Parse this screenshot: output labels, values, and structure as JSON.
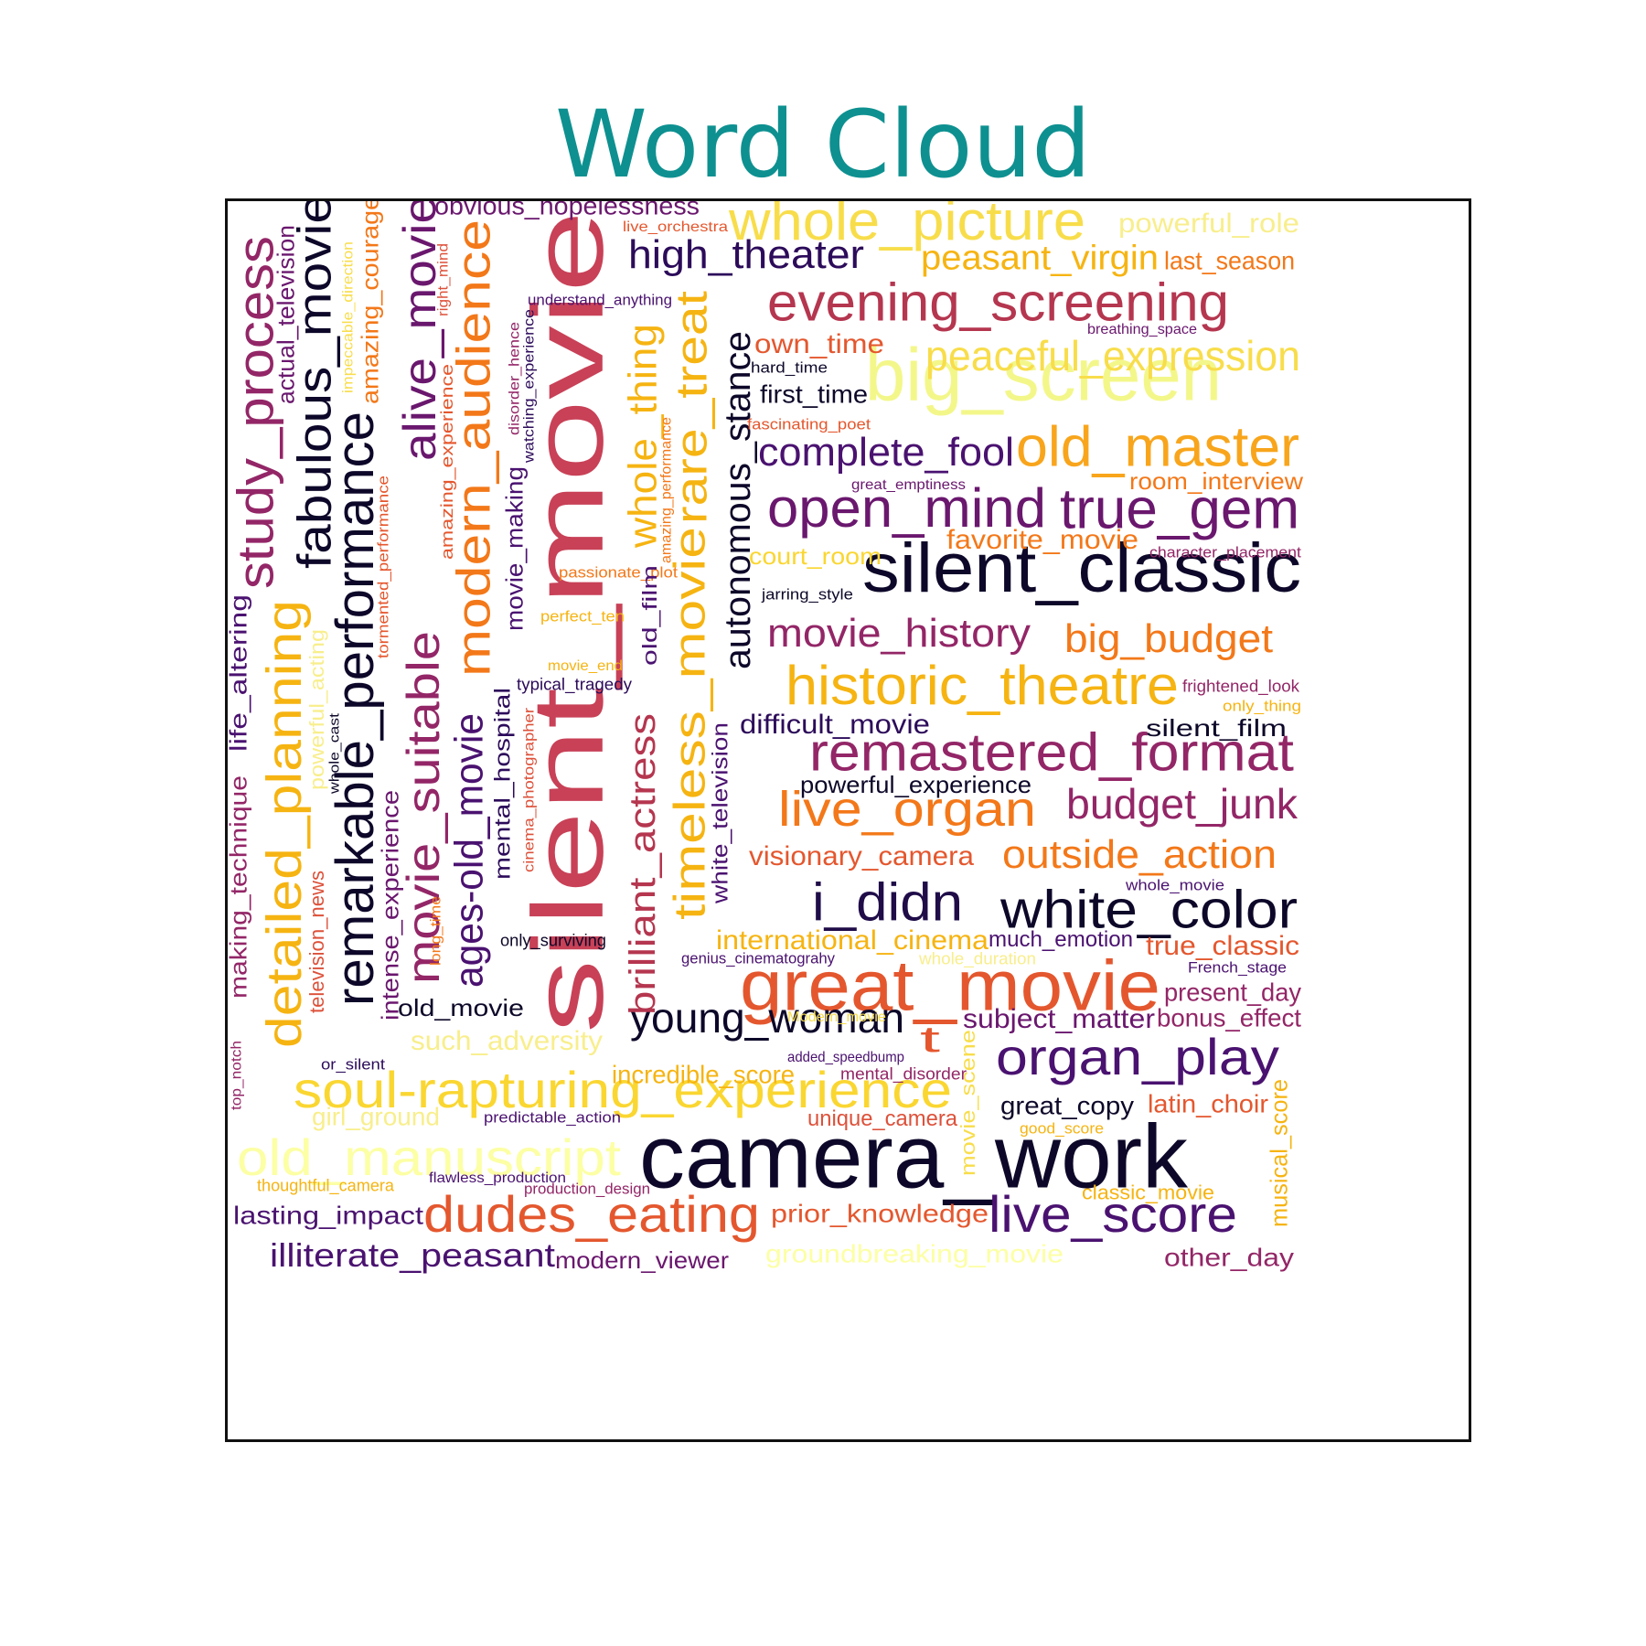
{
  "title": "Word Cloud",
  "colors": {
    "title": "#0e9090",
    "border": "#111111",
    "background": "#ffffff",
    "palette": [
      "#0d0829",
      "#3b0f6f",
      "#6a176e",
      "#932667",
      "#bc3754",
      "#dd513a",
      "#f37819",
      "#fca50a",
      "#f6d746",
      "#fcffa4"
    ]
  },
  "words": [
    {
      "text": "silent_movie",
      "color": "#c84157"
    },
    {
      "text": "camera_work",
      "color": "#0d0829"
    },
    {
      "text": "great_movie",
      "color": "#e4572e"
    },
    {
      "text": "big_screen",
      "color": "#f3f78a"
    },
    {
      "text": "silent_classic",
      "color": "#0d0829"
    },
    {
      "text": "whole_picture",
      "color": "#f8dd4b"
    },
    {
      "text": "evening_screening",
      "color": "#b5364f"
    },
    {
      "text": "peaceful_expression",
      "color": "#f8dd4b"
    },
    {
      "text": "old_master",
      "color": "#f8a51c"
    },
    {
      "text": "true_gem",
      "color": "#6a176e"
    },
    {
      "text": "open_mind",
      "color": "#6a176e"
    },
    {
      "text": "complete_fool",
      "color": "#4a1270"
    },
    {
      "text": "historic_theatre",
      "color": "#f6b412"
    },
    {
      "text": "remastered_format",
      "color": "#932667"
    },
    {
      "text": "live_organ",
      "color": "#f37819"
    },
    {
      "text": "budget_junk",
      "color": "#932667"
    },
    {
      "text": "outside_action",
      "color": "#f37819"
    },
    {
      "text": "white_color",
      "color": "#0d0829"
    },
    {
      "text": "i_didn",
      "color": "#1f0c48"
    },
    {
      "text": "organ_play",
      "color": "#4a1270"
    },
    {
      "text": "soul-rapturing_experience",
      "color": "#fad631"
    },
    {
      "text": "old_manuscript",
      "color": "#fcffa4"
    },
    {
      "text": "dudes_eating",
      "color": "#e4572e"
    },
    {
      "text": "live_score",
      "color": "#4a1270"
    },
    {
      "text": "young_woman",
      "color": "#0d0829"
    },
    {
      "text": "high_theater",
      "color": "#2c0b5a"
    },
    {
      "text": "movie_history",
      "color": "#932667"
    },
    {
      "text": "big_budget",
      "color": "#f37819"
    },
    {
      "text": "study_process",
      "color": "#932667"
    },
    {
      "text": "fabulous_movie",
      "color": "#0d0829"
    },
    {
      "text": "remarkable_performance",
      "color": "#0d0829"
    },
    {
      "text": "detailed_planning",
      "color": "#f6b412"
    },
    {
      "text": "movie_suitable",
      "color": "#932667"
    },
    {
      "text": "alive_movie",
      "color": "#6a176e"
    },
    {
      "text": "modern_audience",
      "color": "#f37819"
    },
    {
      "text": "rare_treat",
      "color": "#f6b412"
    },
    {
      "text": "whole_thing",
      "color": "#f6b412"
    },
    {
      "text": "timeless_movie",
      "color": "#f6b412"
    },
    {
      "text": "autonomous_stance",
      "color": "#0d0829"
    },
    {
      "text": "brilliant_actress",
      "color": "#b5364f"
    },
    {
      "text": "ages-old_movie",
      "color": "#4a1270"
    },
    {
      "text": "peasant_virgin",
      "color": "#f6b412"
    },
    {
      "text": "powerful_role",
      "color": "#f8ee8c"
    },
    {
      "text": "last_season",
      "color": "#f37819"
    },
    {
      "text": "obvious_hopelessness",
      "color": "#6a176e"
    },
    {
      "text": "live_orchestra",
      "color": "#e4572e"
    },
    {
      "text": "understand_anything",
      "color": "#4a1270"
    },
    {
      "text": "breathing_space",
      "color": "#6a176e"
    },
    {
      "text": "own_time",
      "color": "#e4572e"
    },
    {
      "text": "hard_time",
      "color": "#0d0829"
    },
    {
      "text": "first_time",
      "color": "#0d0829"
    },
    {
      "text": "fascinating_poet",
      "color": "#e4572e"
    },
    {
      "text": "great_emptiness",
      "color": "#6a176e"
    },
    {
      "text": "room_interview",
      "color": "#f37819"
    },
    {
      "text": "favorite_movie",
      "color": "#f37819"
    },
    {
      "text": "character_placement",
      "color": "#932667"
    },
    {
      "text": "court_room",
      "color": "#fad631"
    },
    {
      "text": "passionate_plot",
      "color": "#f37819"
    },
    {
      "text": "jarring_style",
      "color": "#0d0829"
    },
    {
      "text": "perfect_ten",
      "color": "#f6b412"
    },
    {
      "text": "movie_end",
      "color": "#f6b412"
    },
    {
      "text": "typical_tragedy",
      "color": "#2c0b5a"
    },
    {
      "text": "frightened_look",
      "color": "#932667"
    },
    {
      "text": "only_thing",
      "color": "#f6b412"
    },
    {
      "text": "difficult_movie",
      "color": "#2c0b5a"
    },
    {
      "text": "silent_film",
      "color": "#0d0829"
    },
    {
      "text": "powerful_experience",
      "color": "#0d0829"
    },
    {
      "text": "visionary_camera",
      "color": "#e4572e"
    },
    {
      "text": "whole_movie",
      "color": "#4a1270"
    },
    {
      "text": "international_cinema",
      "color": "#f6b412"
    },
    {
      "text": "much_emotion",
      "color": "#4a1270"
    },
    {
      "text": "genius_cinematograhy",
      "color": "#4a1270"
    },
    {
      "text": "whole_duration",
      "color": "#f8ee8c"
    },
    {
      "text": "true_classic",
      "color": "#e4572e"
    },
    {
      "text": "French_stage",
      "color": "#4a1270"
    },
    {
      "text": "present_day",
      "color": "#932667"
    },
    {
      "text": "subject_matter",
      "color": "#6a176e"
    },
    {
      "text": "bonus_effect",
      "color": "#932667"
    },
    {
      "text": "Modern_movie",
      "color": "#f8dd4b"
    },
    {
      "text": "t",
      "color": "#e4572e"
    },
    {
      "text": "added_speedbump",
      "color": "#4a1270"
    },
    {
      "text": "mental_disorder",
      "color": "#932667"
    },
    {
      "text": "incredible_score",
      "color": "#f6b412"
    },
    {
      "text": "great_copy",
      "color": "#0d0829"
    },
    {
      "text": "latin_choir",
      "color": "#e4572e"
    },
    {
      "text": "good_score",
      "color": "#f6b412"
    },
    {
      "text": "unique_camera",
      "color": "#dd513a"
    },
    {
      "text": "movie_scene",
      "color": "#f8dd4b"
    },
    {
      "text": "musical_score",
      "color": "#f6b412"
    },
    {
      "text": "classic_movie",
      "color": "#f6b412"
    },
    {
      "text": "prior_knowledge",
      "color": "#e4572e"
    },
    {
      "text": "groundbreaking_movie",
      "color": "#fcffa4"
    },
    {
      "text": "other_day",
      "color": "#932667"
    },
    {
      "text": "modern_viewer",
      "color": "#6a176e"
    },
    {
      "text": "illiterate_peasant",
      "color": "#4a1270"
    },
    {
      "text": "lasting_impact",
      "color": "#4a1270"
    },
    {
      "text": "flawless_production",
      "color": "#4a1270"
    },
    {
      "text": "production_design",
      "color": "#932667"
    },
    {
      "text": "thoughtful_camera",
      "color": "#f6b412"
    },
    {
      "text": "predictable_action",
      "color": "#4a1270"
    },
    {
      "text": "girl_ground",
      "color": "#f8ee8c"
    },
    {
      "text": "or_silent",
      "color": "#2c0b5a"
    },
    {
      "text": "such_adversity",
      "color": "#f8ee8c"
    },
    {
      "text": "old_movie",
      "color": "#0d0829"
    },
    {
      "text": "only_surviving",
      "color": "#0d0829"
    },
    {
      "text": "top_notch",
      "color": "#932667"
    },
    {
      "text": "making_technique",
      "color": "#932667"
    },
    {
      "text": "life_altering",
      "color": "#4a1270"
    },
    {
      "text": "television_news",
      "color": "#dd513a"
    },
    {
      "text": "powerful_acting",
      "color": "#f8ee8c"
    },
    {
      "text": "whole_cast",
      "color": "#0d0829"
    },
    {
      "text": "intense_experience",
      "color": "#6a176e"
    },
    {
      "text": "tormented_performance",
      "color": "#e4572e"
    },
    {
      "text": "actual_television",
      "color": "#6a176e"
    },
    {
      "text": "impeccable_direction",
      "color": "#f8dd4b"
    },
    {
      "text": "amazing_courage",
      "color": "#f37819"
    },
    {
      "text": "right_mind",
      "color": "#dd513a"
    },
    {
      "text": "amazing_experience",
      "color": "#e4572e"
    },
    {
      "text": "long_time",
      "color": "#f37819"
    },
    {
      "text": "disorder_hence",
      "color": "#932667"
    },
    {
      "text": "watching_experience",
      "color": "#2c0b5a"
    },
    {
      "text": "movie_making",
      "color": "#4a1270"
    },
    {
      "text": "mental_hospital",
      "color": "#2c0b5a"
    },
    {
      "text": "cinema_photographer",
      "color": "#dd513a"
    },
    {
      "text": "old_film",
      "color": "#4a1270"
    },
    {
      "text": "amazing_performance",
      "color": "#f37819"
    },
    {
      "text": "white_television",
      "color": "#4a1270"
    }
  ]
}
